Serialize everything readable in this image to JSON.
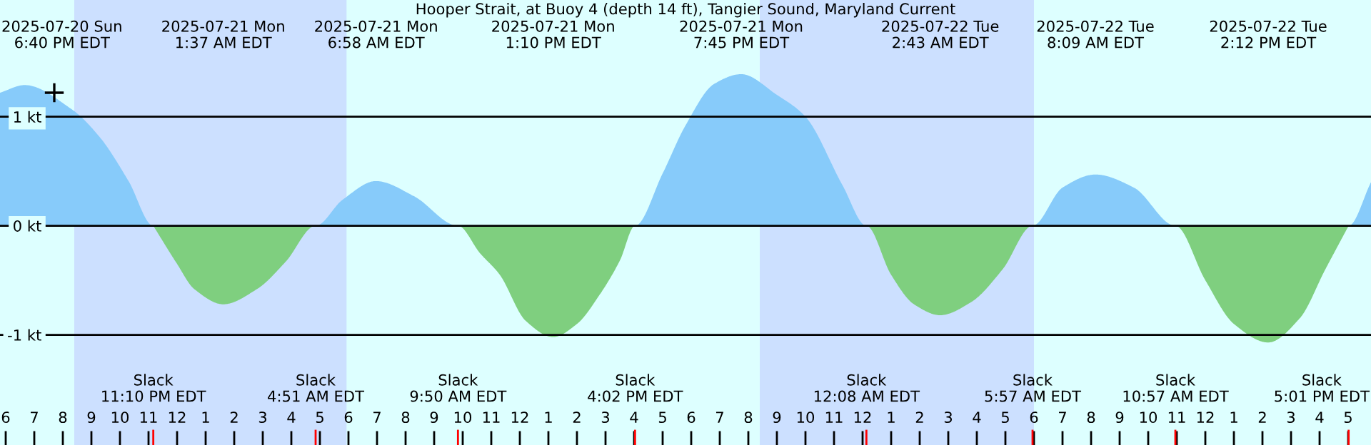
{
  "chart_data": {
    "type": "area",
    "title": "Hooper Strait, at Buoy 4 (depth 14 ft), Tangier Sound, Maryland Current",
    "xlim": [
      "2025-07-20T17:48",
      "2025-07-22T17:48"
    ],
    "ylim": [
      -2.01,
      2.07
    ],
    "yticks": [
      {
        "value": 1,
        "label": "1 kt"
      },
      {
        "value": 0,
        "label": "0 kt"
      },
      {
        "value": -1,
        "label": "-1 kt"
      }
    ],
    "xticks": [
      {
        "value": "2025-07-20T18:00",
        "label": "6"
      },
      {
        "value": "2025-07-20T19:00",
        "label": "7"
      },
      {
        "value": "2025-07-20T20:00",
        "label": "8"
      },
      {
        "value": "2025-07-20T21:00",
        "label": "9"
      },
      {
        "value": "2025-07-20T22:00",
        "label": "10"
      },
      {
        "value": "2025-07-20T23:00",
        "label": "11"
      },
      {
        "value": "2025-07-21T00:00",
        "label": "12"
      },
      {
        "value": "2025-07-21T01:00",
        "label": "1"
      },
      {
        "value": "2025-07-21T02:00",
        "label": "2"
      },
      {
        "value": "2025-07-21T03:00",
        "label": "3"
      },
      {
        "value": "2025-07-21T04:00",
        "label": "4"
      },
      {
        "value": "2025-07-21T05:00",
        "label": "5"
      },
      {
        "value": "2025-07-21T06:00",
        "label": "6"
      },
      {
        "value": "2025-07-21T07:00",
        "label": "7"
      },
      {
        "value": "2025-07-21T08:00",
        "label": "8"
      },
      {
        "value": "2025-07-21T09:00",
        "label": "9"
      },
      {
        "value": "2025-07-21T10:00",
        "label": "10"
      },
      {
        "value": "2025-07-21T11:00",
        "label": "11"
      },
      {
        "value": "2025-07-21T12:00",
        "label": "12"
      },
      {
        "value": "2025-07-21T13:00",
        "label": "1"
      },
      {
        "value": "2025-07-21T14:00",
        "label": "2"
      },
      {
        "value": "2025-07-21T15:00",
        "label": "3"
      },
      {
        "value": "2025-07-21T16:00",
        "label": "4"
      },
      {
        "value": "2025-07-21T17:00",
        "label": "5"
      },
      {
        "value": "2025-07-21T18:00",
        "label": "6"
      },
      {
        "value": "2025-07-21T19:00",
        "label": "7"
      },
      {
        "value": "2025-07-21T20:00",
        "label": "8"
      },
      {
        "value": "2025-07-21T21:00",
        "label": "9"
      },
      {
        "value": "2025-07-21T22:00",
        "label": "10"
      },
      {
        "value": "2025-07-21T23:00",
        "label": "11"
      },
      {
        "value": "2025-07-22T00:00",
        "label": "12"
      },
      {
        "value": "2025-07-22T01:00",
        "label": "1"
      },
      {
        "value": "2025-07-22T02:00",
        "label": "2"
      },
      {
        "value": "2025-07-22T03:00",
        "label": "3"
      },
      {
        "value": "2025-07-22T04:00",
        "label": "4"
      },
      {
        "value": "2025-07-22T05:00",
        "label": "5"
      },
      {
        "value": "2025-07-22T06:00",
        "label": "6"
      },
      {
        "value": "2025-07-22T07:00",
        "label": "7"
      },
      {
        "value": "2025-07-22T08:00",
        "label": "8"
      },
      {
        "value": "2025-07-22T09:00",
        "label": "9"
      },
      {
        "value": "2025-07-22T10:00",
        "label": "10"
      },
      {
        "value": "2025-07-22T11:00",
        "label": "11"
      },
      {
        "value": "2025-07-22T12:00",
        "label": "12"
      },
      {
        "value": "2025-07-22T13:00",
        "label": "1"
      },
      {
        "value": "2025-07-22T14:00",
        "label": "2"
      },
      {
        "value": "2025-07-22T15:00",
        "label": "3"
      },
      {
        "value": "2025-07-22T16:00",
        "label": "4"
      },
      {
        "value": "2025-07-22T17:00",
        "label": "5"
      }
    ],
    "grid": "y",
    "legend": false,
    "bands": [
      {
        "axis": "x",
        "from": "2025-07-20T20:24",
        "to": "2025-07-21T05:56",
        "color": "#cce0ff"
      },
      {
        "axis": "x",
        "from": "2025-07-21T20:24",
        "to": "2025-07-22T06:00",
        "color": "#cce0ff"
      }
    ],
    "series": [
      {
        "color": "#87cbfa",
        "x": [
          "2025-07-20T17:48",
          "2025-07-20T18:40",
          "2025-07-20T20:18",
          "2025-07-20T21:18",
          "2025-07-20T22:18",
          "2025-07-20T23:10",
          "2025-07-21T04:51",
          "2025-07-21T05:48",
          "2025-07-21T06:58",
          "2025-07-21T08:18",
          "2025-07-21T09:50",
          "2025-07-21T16:02",
          "2025-07-21T17:00",
          "2025-07-21T17:48",
          "2025-07-21T18:48",
          "2025-07-21T19:45",
          "2025-07-21T21:00",
          "2025-07-21T22:00",
          "2025-07-21T23:18",
          "2025-07-22T00:08",
          "2025-07-22T05:57",
          "2025-07-22T07:00",
          "2025-07-22T08:09",
          "2025-07-22T09:30",
          "2025-07-22T10:57",
          "2025-07-22T17:01",
          "2025-07-22T17:48"
        ],
        "values": [
          1.22,
          1.29,
          1.07,
          0.81,
          0.41,
          0,
          0,
          0.24,
          0.41,
          0.27,
          0,
          0,
          0.48,
          0.92,
          1.3,
          1.39,
          1.2,
          1.0,
          0.37,
          0,
          0,
          0.35,
          0.47,
          0.35,
          0,
          0,
          0.4
        ]
      },
      {
        "color": "#7fcf7f",
        "x": [
          "2025-07-20T23:10",
          "2025-07-21T00:00",
          "2025-07-21T00:36",
          "2025-07-21T01:37",
          "2025-07-21T02:48",
          "2025-07-21T03:48",
          "2025-07-21T04:51",
          "2025-07-21T09:50",
          "2025-07-21T10:36",
          "2025-07-21T11:18",
          "2025-07-21T12:12",
          "2025-07-21T13:10",
          "2025-07-21T14:00",
          "2025-07-21T14:48",
          "2025-07-21T15:30",
          "2025-07-21T16:02",
          "2025-07-22T00:08",
          "2025-07-22T01:00",
          "2025-07-22T01:48",
          "2025-07-22T02:43",
          "2025-07-22T03:48",
          "2025-07-22T04:54",
          "2025-07-22T05:57",
          "2025-07-22T10:57",
          "2025-07-22T12:00",
          "2025-07-22T13:00",
          "2025-07-22T14:12",
          "2025-07-22T15:18",
          "2025-07-22T16:12",
          "2025-07-22T17:01"
        ],
        "values": [
          0,
          -0.35,
          -0.58,
          -0.72,
          -0.58,
          -0.33,
          0,
          0,
          -0.25,
          -0.45,
          -0.87,
          -1.02,
          -0.9,
          -0.63,
          -0.32,
          0,
          0,
          -0.45,
          -0.72,
          -0.82,
          -0.7,
          -0.4,
          0,
          0,
          -0.5,
          -0.9,
          -1.07,
          -0.85,
          -0.4,
          0
        ]
      },
      {
        "type": "scatter",
        "color": "#000000",
        "marker": "cross",
        "x": [
          "2025-07-20T19:42"
        ],
        "values": [
          1.22
        ]
      }
    ],
    "annotations": [
      "2025-07-20 Sun\n6:40 PM EDT",
      "Slack\n11:10 PM EDT",
      "2025-07-21 Mon\n1:37 AM EDT",
      "Slack\n4:51 AM EDT",
      "2025-07-21 Mon\n6:58 AM EDT",
      "Slack\n9:50 AM EDT",
      "2025-07-21 Mon\n1:10 PM EDT",
      "Slack\n4:02 PM EDT",
      "2025-07-21 Mon\n7:45 PM EDT",
      "Slack\n12:08 AM EDT",
      "2025-07-22 Tue\n2:43 AM EDT",
      "Slack\n5:57 AM EDT",
      "2025-07-22 Tue\n8:09 AM EDT",
      "Slack\n10:57 AM EDT",
      "2025-07-22 Tue\n2:12 PM EDT",
      "Slack\n5:01 PM EDT"
    ]
  }
}
